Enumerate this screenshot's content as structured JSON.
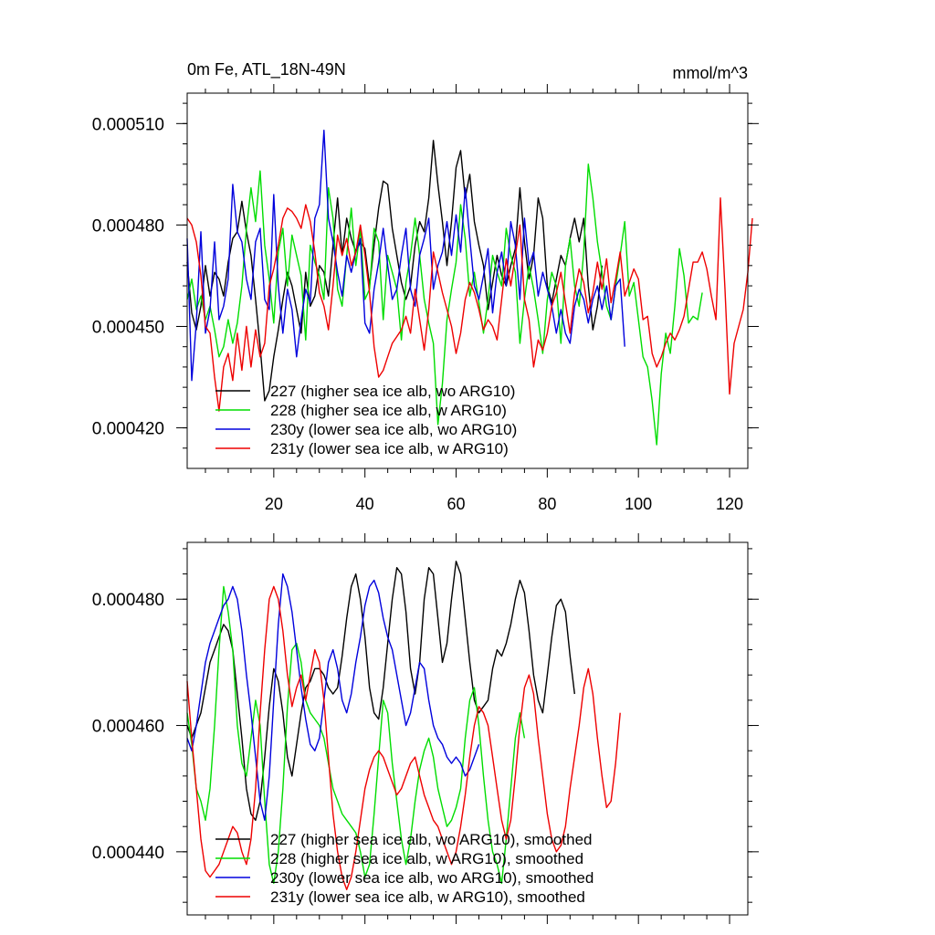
{
  "chart_data": [
    {
      "type": "line",
      "title_left": "0m Fe, ATL_18N-49N",
      "title_right": "mmol/m^3",
      "xlim": [
        1,
        124
      ],
      "ylim": [
        0.000408,
        0.000519
      ],
      "x_ticks": [
        20,
        40,
        60,
        80,
        100,
        120
      ],
      "y_ticks": [
        0.00042,
        0.00045,
        0.00048,
        0.00051
      ],
      "y_tick_labels": [
        "0.000420",
        "0.000450",
        "0.000480",
        "0.000510"
      ],
      "legend_location": "lower-left",
      "series": [
        {
          "name": "227 (higher sea ice alb, wo ARG10)",
          "color": "#000000",
          "values": [
            0.000469,
            0.000454,
            0.000449,
            0.000456,
            0.000468,
            0.000459,
            0.000466,
            0.000464,
            0.000459,
            0.000469,
            0.000476,
            0.000478,
            0.000487,
            0.000478,
            0.000471,
            0.000458,
            0.000444,
            0.000428,
            0.000431,
            0.000441,
            0.000449,
            0.000458,
            0.000466,
            0.000462,
            0.000455,
            0.000448,
            0.000466,
            0.000456,
            0.000459,
            0.000468,
            0.000466,
            0.000459,
            0.000474,
            0.000488,
            0.000471,
            0.000482,
            0.000476,
            0.000472,
            0.000475,
            0.000473,
            0.000462,
            0.000474,
            0.000485,
            0.000493,
            0.000492,
            0.000479,
            0.000471,
            0.000463,
            0.000458,
            0.000462,
            0.000474,
            0.000481,
            0.000478,
            0.000488,
            0.000505,
            0.000492,
            0.000481,
            0.000468,
            0.000481,
            0.000497,
            0.000502,
            0.000488,
            0.000495,
            0.000481,
            0.000474,
            0.000468,
            0.000455,
            0.000463,
            0.000471,
            0.000465,
            0.000462,
            0.000468,
            0.000473,
            0.000491,
            0.000475,
            0.000464,
            0.000471,
            0.000488,
            0.000482,
            0.000462,
            0.000457,
            0.000464,
            0.000471,
            0.000468,
            0.000476,
            0.000482,
            0.000475,
            0.000482,
            0.000462,
            0.000449,
            0.000456,
            0.000468
          ]
        },
        {
          "name": "228 (higher sea ice alb, w ARG10)",
          "color": "#00dd00",
          "values": [
            0.000458,
            0.000464,
            0.000455,
            0.000459,
            0.000452,
            0.000456,
            0.000449,
            0.000441,
            0.000444,
            0.000452,
            0.000445,
            0.000451,
            0.000462,
            0.000479,
            0.000491,
            0.000481,
            0.000496,
            0.000474,
            0.000464,
            0.000451,
            0.000472,
            0.000479,
            0.000462,
            0.000477,
            0.000471,
            0.000465,
            0.000446,
            0.000474,
            0.000469,
            0.000465,
            0.000458,
            0.000491,
            0.000482,
            0.000461,
            0.000456,
            0.000471,
            0.000485,
            0.000468,
            0.000479,
            0.000458,
            0.000461,
            0.000479,
            0.000475,
            0.000452,
            0.000471,
            0.000466,
            0.000461,
            0.000446,
            0.000463,
            0.000471,
            0.000482,
            0.000471,
            0.000458,
            0.000451,
            0.000445,
            0.000421,
            0.000433,
            0.000452,
            0.000461,
            0.000469,
            0.000486,
            0.000476,
            0.000459,
            0.000466,
            0.000457,
            0.000448,
            0.000458,
            0.000471,
            0.000466,
            0.000462,
            0.000479,
            0.000471,
            0.000466,
            0.000445,
            0.000458,
            0.000468,
            0.000461,
            0.000452,
            0.000442,
            0.000458,
            0.000466,
            0.000462,
            0.000445,
            0.000468,
            0.000476,
            0.000462,
            0.000456,
            0.000472,
            0.000498,
            0.000488,
            0.000475,
            0.000466,
            0.000456,
            0.000452,
            0.000462,
            0.000471,
            0.000481,
            0.000459,
            0.000463,
            0.000452,
            0.000441,
            0.000438,
            0.000428,
            0.000415,
            0.000436,
            0.000448,
            0.000442,
            0.000456,
            0.000473,
            0.000465,
            0.000451,
            0.000453,
            0.000452,
            0.00046
          ]
        },
        {
          "name": "230y (lower sea ice alb, wo ARG10)",
          "color": "#0000dd",
          "values": [
            0.000476,
            0.000434,
            0.000451,
            0.000478,
            0.000448,
            0.000455,
            0.000475,
            0.000452,
            0.000456,
            0.000464,
            0.000492,
            0.000478,
            0.000475,
            0.000464,
            0.000458,
            0.000475,
            0.000479,
            0.000458,
            0.000455,
            0.000489,
            0.000462,
            0.000448,
            0.000461,
            0.000455,
            0.000441,
            0.000452,
            0.000461,
            0.000457,
            0.000482,
            0.000486,
            0.000508,
            0.000482,
            0.000475,
            0.000466,
            0.000459,
            0.000471,
            0.000466,
            0.000472,
            0.000476,
            0.000451,
            0.000448,
            0.000461,
            0.000469,
            0.000479,
            0.000468,
            0.000458,
            0.000461,
            0.000471,
            0.000479,
            0.000461,
            0.000456,
            0.000471,
            0.000476,
            0.000482,
            0.000461,
            0.000468,
            0.000472,
            0.000481,
            0.000471,
            0.000483,
            0.000472,
            0.000491,
            0.000476,
            0.000462,
            0.000458,
            0.000465,
            0.000473,
            0.000454,
            0.000466,
            0.000472,
            0.000462,
            0.000481,
            0.000474,
            0.000458,
            0.000482,
            0.000468,
            0.000472,
            0.000459,
            0.000466,
            0.000461,
            0.000456,
            0.000448,
            0.000455,
            0.000448,
            0.000445,
            0.000456,
            0.000461,
            0.000458,
            0.000451,
            0.000458,
            0.000462,
            0.000455,
            0.000462,
            0.000452,
            0.000462,
            0.000464,
            0.000444
          ]
        },
        {
          "name": "231y (lower sea ice alb, w ARG10)",
          "color": "#ee0000",
          "values": [
            0.000482,
            0.00048,
            0.000475,
            0.000465,
            0.00045,
            0.000448,
            0.000435,
            0.000425,
            0.000438,
            0.000442,
            0.000434,
            0.000448,
            0.000437,
            0.00045,
            0.000438,
            0.000449,
            0.000441,
            0.000445,
            0.000462,
            0.000467,
            0.000474,
            0.000482,
            0.000485,
            0.000484,
            0.000482,
            0.000479,
            0.000486,
            0.000481,
            0.000472,
            0.00046,
            0.000456,
            0.000449,
            0.000462,
            0.000477,
            0.000471,
            0.000476,
            0.000468,
            0.000472,
            0.00048,
            0.000471,
            0.00046,
            0.000444,
            0.000435,
            0.000437,
            0.000441,
            0.000445,
            0.000447,
            0.000449,
            0.000453,
            0.000448,
            0.000461,
            0.000452,
            0.000443,
            0.000455,
            0.000472,
            0.000466,
            0.00046,
            0.000455,
            0.00045,
            0.000442,
            0.000448,
            0.000458,
            0.000463,
            0.00046,
            0.000455,
            0.000449,
            0.000452,
            0.00045,
            0.000446,
            0.000458,
            0.00047,
            0.000462,
            0.000471,
            0.00048,
            0.000458,
            0.000452,
            0.000438,
            0.000446,
            0.000443,
            0.000448,
            0.000456,
            0.00046,
            0.000466,
            0.000457,
            0.000448,
            0.00046,
            0.000467,
            0.000463,
            0.000454,
            0.00046,
            0.000469,
            0.000461,
            0.00047,
            0.000457,
            0.000464,
            0.000472,
            0.000459,
            0.000463,
            0.000467,
            0.000464,
            0.000452,
            0.000453,
            0.000442,
            0.000438,
            0.000441,
            0.000445,
            0.000448,
            0.000446,
            0.000449,
            0.000453,
            0.000461,
            0.000469,
            0.000469,
            0.000472,
            0.000467,
            0.000459,
            0.000452,
            0.000488,
            0.000461,
            0.00043,
            0.000445,
            0.00045,
            0.000455,
            0.000466,
            0.000482
          ]
        }
      ]
    },
    {
      "type": "line",
      "xlim": [
        1,
        124
      ],
      "ylim": [
        0.00043,
        0.000489
      ],
      "x_ticks": [
        20,
        40,
        60,
        80,
        100,
        120
      ],
      "y_ticks": [
        0.00044,
        0.00046,
        0.00048
      ],
      "y_tick_labels": [
        "0.000440",
        "0.000460",
        "0.000480"
      ],
      "legend_location": "lower-left",
      "series": [
        {
          "name": "227 (higher sea ice alb, wo ARG10), smoothed",
          "color": "#000000",
          "values": [
            0.00046,
            0.000458,
            0.00046,
            0.000462,
            0.000466,
            0.00047,
            0.000472,
            0.000474,
            0.000476,
            0.000475,
            0.000472,
            0.000465,
            0.000458,
            0.00045,
            0.000446,
            0.000445,
            0.000448,
            0.000455,
            0.000463,
            0.000469,
            0.000467,
            0.000462,
            0.000455,
            0.000452,
            0.000457,
            0.000462,
            0.000466,
            0.000467,
            0.000469,
            0.000469,
            0.000468,
            0.000466,
            0.000465,
            0.000466,
            0.000471,
            0.000477,
            0.000482,
            0.000484,
            0.00048,
            0.000474,
            0.000466,
            0.000462,
            0.000461,
            0.000466,
            0.000473,
            0.00048,
            0.000485,
            0.000484,
            0.000478,
            0.000469,
            0.000465,
            0.00047,
            0.00048,
            0.000485,
            0.000484,
            0.000477,
            0.00047,
            0.000473,
            0.00048,
            0.000486,
            0.000484,
            0.000477,
            0.00047,
            0.000464,
            0.000462,
            0.000463,
            0.000464,
            0.000469,
            0.000472,
            0.000471,
            0.000473,
            0.000476,
            0.00048,
            0.000483,
            0.000481,
            0.000475,
            0.000468,
            0.000464,
            0.000462,
            0.000468,
            0.000474,
            0.000479,
            0.00048,
            0.000478,
            0.000471,
            0.000465
          ]
        },
        {
          "name": "228 (higher sea ice alb, w ARG10), smoothed",
          "color": "#00dd00",
          "values": [
            0.000462,
            0.000457,
            0.00045,
            0.000448,
            0.000445,
            0.00045,
            0.00046,
            0.000472,
            0.000482,
            0.000478,
            0.000472,
            0.00046,
            0.000454,
            0.000452,
            0.000458,
            0.000464,
            0.00046,
            0.000448,
            0.000438,
            0.000435,
            0.00044,
            0.00045,
            0.000463,
            0.000472,
            0.000473,
            0.00047,
            0.000464,
            0.000462,
            0.000461,
            0.00046,
            0.000458,
            0.000454,
            0.00045,
            0.000448,
            0.000446,
            0.000445,
            0.000444,
            0.000443,
            0.00044,
            0.000436,
            0.000438,
            0.000446,
            0.000455,
            0.000464,
            0.000462,
            0.000454,
            0.000448,
            0.000442,
            0.000438,
            0.000442,
            0.000448,
            0.000453,
            0.000456,
            0.000458,
            0.000455,
            0.00045,
            0.000447,
            0.000444,
            0.000445,
            0.000447,
            0.00045,
            0.000458,
            0.000464,
            0.000466,
            0.00046,
            0.000452,
            0.000445,
            0.00044,
            0.000438,
            0.000435,
            0.000442,
            0.00045,
            0.000458,
            0.000462,
            0.000458
          ]
        },
        {
          "name": "230y (lower sea ice alb, wo ARG10), smoothed",
          "color": "#0000dd",
          "values": [
            0.000458,
            0.000456,
            0.00046,
            0.000465,
            0.00047,
            0.000473,
            0.000475,
            0.000477,
            0.000479,
            0.00048,
            0.000482,
            0.00048,
            0.000475,
            0.000468,
            0.000462,
            0.000455,
            0.000448,
            0.000445,
            0.000452,
            0.000464,
            0.000476,
            0.000484,
            0.000482,
            0.000478,
            0.000472,
            0.000466,
            0.000461,
            0.000457,
            0.000456,
            0.000458,
            0.000464,
            0.00047,
            0.000472,
            0.000469,
            0.000464,
            0.000462,
            0.000465,
            0.00047,
            0.000474,
            0.000479,
            0.000482,
            0.000483,
            0.000481,
            0.000477,
            0.000474,
            0.000472,
            0.000468,
            0.000464,
            0.00046,
            0.000462,
            0.000466,
            0.00047,
            0.000469,
            0.000464,
            0.00046,
            0.000458,
            0.000457,
            0.000455,
            0.000454,
            0.000455,
            0.000454,
            0.000452,
            0.000453,
            0.000455,
            0.000457
          ]
        },
        {
          "name": "231y (lower sea ice alb, w ARG10), smoothed",
          "color": "#ee0000",
          "values": [
            0.000467,
            0.000458,
            0.00045,
            0.000442,
            0.000437,
            0.000436,
            0.000437,
            0.000438,
            0.00044,
            0.000442,
            0.000444,
            0.000443,
            0.00044,
            0.000438,
            0.000442,
            0.00045,
            0.000462,
            0.000472,
            0.00048,
            0.000482,
            0.00048,
            0.000475,
            0.000468,
            0.000463,
            0.000466,
            0.000468,
            0.000464,
            0.000468,
            0.000472,
            0.00047,
            0.000464,
            0.000455,
            0.000446,
            0.00044,
            0.000436,
            0.000434,
            0.000436,
            0.00044,
            0.000445,
            0.00045,
            0.000453,
            0.000455,
            0.000456,
            0.000455,
            0.000453,
            0.000451,
            0.000449,
            0.00045,
            0.000452,
            0.000454,
            0.000455,
            0.000452,
            0.000449,
            0.000447,
            0.000445,
            0.000444,
            0.000442,
            0.00044,
            0.000438,
            0.00044,
            0.000444,
            0.000449,
            0.000455,
            0.00046,
            0.000463,
            0.000462,
            0.00046,
            0.000455,
            0.00045,
            0.000445,
            0.000442,
            0.000445,
            0.000452,
            0.00046,
            0.000466,
            0.000468,
            0.000465,
            0.000458,
            0.000452,
            0.000446,
            0.000442,
            0.00044,
            0.000441,
            0.000444,
            0.00045,
            0.000455,
            0.00046,
            0.000466,
            0.000469,
            0.000465,
            0.000458,
            0.000452,
            0.000447,
            0.000448,
            0.000454,
            0.000462
          ]
        }
      ]
    }
  ]
}
